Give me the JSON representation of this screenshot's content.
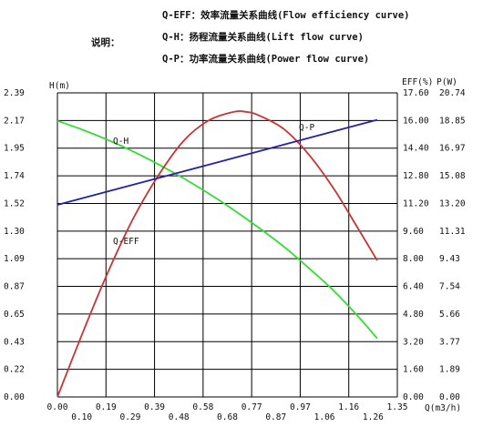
{
  "legend": {
    "title": "说明：",
    "items": [
      "Q-EFF：效率流量关系曲线(Flow efficiency curve)",
      "Q-H：扬程流量关系曲线(Lift flow curve)",
      "Q-P：功率流量关系曲线(Power flow curve)"
    ]
  },
  "chart_data": {
    "type": "line",
    "xlabel": "Q(m3/h)",
    "ylabel_left": "H(m)",
    "ylabel_right_eff": "EFF(%)",
    "ylabel_right_power": "P(W)",
    "xlim": [
      0,
      1.35
    ],
    "ylim_H": [
      0,
      2.39
    ],
    "ylim_EFF": [
      0,
      17.6
    ],
    "ylim_P": [
      0,
      20.74
    ],
    "grid": true,
    "x_ticks_upper": [
      "0.00",
      "0.19",
      "0.39",
      "0.58",
      "0.77",
      "0.97",
      "1.16",
      "1.35"
    ],
    "x_ticks_lower": [
      "0.10",
      "0.29",
      "0.48",
      "0.68",
      "0.87",
      "1.06",
      "1.26"
    ],
    "y_ticks_H": [
      "2.39",
      "2.17",
      "1.95",
      "1.74",
      "1.52",
      "1.30",
      "1.09",
      "0.87",
      "0.65",
      "0.43",
      "0.22",
      "0.00"
    ],
    "y_ticks_EFF": [
      "17.60",
      "16.00",
      "14.40",
      "12.80",
      "11.20",
      "9.60",
      "8.00",
      "6.40",
      "4.80",
      "3.20",
      "1.60",
      "0.00"
    ],
    "y_ticks_P": [
      "20.74",
      "18.85",
      "16.97",
      "15.08",
      "13.20",
      "11.31",
      "9.43",
      "7.54",
      "5.66",
      "3.77",
      "1.89",
      "0.00"
    ],
    "series": [
      {
        "name": "Q-H",
        "axis": "H",
        "color": "#33dd33",
        "x": [
          0,
          0.1,
          0.2,
          0.3,
          0.4,
          0.5,
          0.6,
          0.7,
          0.8,
          0.9,
          1.0,
          1.1,
          1.2,
          1.27
        ],
        "values": [
          2.17,
          2.1,
          2.02,
          1.93,
          1.83,
          1.72,
          1.6,
          1.47,
          1.33,
          1.18,
          1.01,
          0.83,
          0.62,
          0.46
        ]
      },
      {
        "name": "Q-EFF",
        "axis": "EFF",
        "color": "#cc3333",
        "x": [
          0,
          0.1,
          0.2,
          0.3,
          0.4,
          0.5,
          0.6,
          0.7,
          0.75,
          0.8,
          0.9,
          1.0,
          1.1,
          1.2,
          1.27
        ],
        "values": [
          0,
          3.7,
          7.2,
          10.3,
          12.8,
          14.8,
          16.0,
          16.5,
          16.5,
          16.3,
          15.5,
          14.0,
          12.0,
          9.6,
          7.9
        ]
      },
      {
        "name": "Q-P",
        "axis": "P",
        "color": "#2222aa",
        "x": [
          0,
          1.27
        ],
        "values": [
          13.1,
          18.9
        ]
      }
    ],
    "curve_labels": [
      "Q-H",
      "Q-EFF",
      "Q-P"
    ]
  }
}
